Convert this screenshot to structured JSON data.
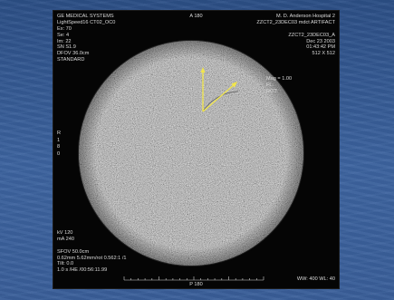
{
  "overlay": {
    "top_left": [
      "GE MEDICAL SYSTEMS",
      "LightSpeed16 CT02_OC0",
      "Ex: 70",
      "Se: 4",
      "Im: 22",
      "SN S1.9",
      "DFOV 36.0cm",
      "STANDARD"
    ],
    "top_center": "A 180",
    "top_right": [
      "M. D. Anderson Hospital 2",
      "ZZCT2_23DEC03 mdct ARTIFACT",
      "",
      "ZZCT2_23DEC03_A",
      "Dec 23 2003",
      "01:43:42 PM",
      "512 X 512"
    ],
    "annotation": [
      "Mag = 1.00",
      "FL:",
      "ROT:"
    ],
    "left_side": [
      "R",
      "1",
      "8",
      "0"
    ],
    "bottom_left": [
      "kV 120",
      "mA 240",
      "",
      "SFOV 50.0cm",
      "0.62mm 5.62mm/rot 0.562:1 /1",
      "Tilt: 0.0",
      "1.0 s /HE  /00:56:11.99"
    ],
    "bottom_center": "P 180",
    "bottom_right": "WW: 400 WL: 40"
  },
  "colors": {
    "background": "#3a5f9a",
    "arrow": "#f2e64a",
    "overlay_text": "#dcdcdc"
  }
}
